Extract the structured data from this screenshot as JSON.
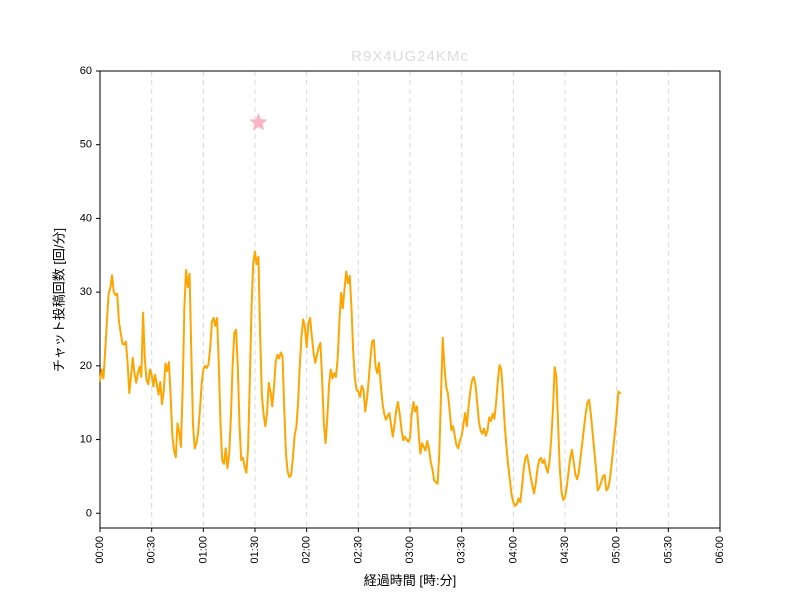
{
  "chart_data": {
    "type": "line",
    "title": "R9X4UG24KMc",
    "title_color": "#dcdcdc",
    "xlabel": "経過時間 [時:分]",
    "ylabel": "チャット投稿回数 [回/分]",
    "x_tick_labels": [
      "00:00",
      "00:30",
      "01:00",
      "01:30",
      "02:00",
      "02:30",
      "03:00",
      "03:30",
      "04:00",
      "04:30",
      "05:00",
      "05:30",
      "06:00"
    ],
    "x_tick_minutes": [
      0,
      30,
      60,
      90,
      120,
      150,
      180,
      210,
      240,
      270,
      300,
      330,
      360
    ],
    "x_total_minutes": 360,
    "y_ticks": [
      0,
      10,
      20,
      30,
      40,
      50,
      60
    ],
    "ylim": [
      -2,
      60
    ],
    "grid": "vertical-dashed",
    "grid_color": "#d8d8d8",
    "axes_box": true,
    "legend": "none",
    "series": [
      {
        "name": "チャット投稿回数",
        "color": "#FFA500",
        "x_unit": "minutes-elapsed",
        "points": [
          [
            0,
            18
          ],
          [
            1,
            19.5
          ],
          [
            2,
            18.3
          ],
          [
            3,
            22
          ],
          [
            4,
            26
          ],
          [
            5,
            29.8
          ],
          [
            6,
            30.6
          ],
          [
            7,
            32.3
          ],
          [
            8,
            30
          ],
          [
            9,
            29.6
          ],
          [
            10,
            29.8
          ],
          [
            11,
            26
          ],
          [
            12,
            24.5
          ],
          [
            13,
            23
          ],
          [
            14,
            22.9
          ],
          [
            15,
            23.3
          ],
          [
            16,
            20.5
          ],
          [
            17,
            16.3
          ],
          [
            18,
            18.5
          ],
          [
            19,
            21.1
          ],
          [
            20,
            19
          ],
          [
            21,
            17.7
          ],
          [
            22,
            19
          ],
          [
            23,
            19.9
          ],
          [
            24,
            18.5
          ],
          [
            25,
            27.2
          ],
          [
            26,
            21
          ],
          [
            27,
            18.1
          ],
          [
            28,
            17.5
          ],
          [
            29,
            19.5
          ],
          [
            30,
            18.8
          ],
          [
            31,
            17.2
          ],
          [
            32,
            18.8
          ],
          [
            33,
            17.5
          ],
          [
            34,
            16.1
          ],
          [
            35,
            17.8
          ],
          [
            36,
            14.8
          ],
          [
            37,
            16.5
          ],
          [
            38,
            20.3
          ],
          [
            39,
            19.3
          ],
          [
            40,
            20.5
          ],
          [
            41,
            16
          ],
          [
            42,
            10.5
          ],
          [
            43,
            8.5
          ],
          [
            44,
            7.6
          ],
          [
            45,
            12.2
          ],
          [
            46,
            11
          ],
          [
            47,
            9
          ],
          [
            48,
            17
          ],
          [
            49,
            28
          ],
          [
            50,
            33
          ],
          [
            51,
            30.7
          ],
          [
            52,
            32.5
          ],
          [
            53,
            22
          ],
          [
            54,
            12
          ],
          [
            55,
            8.8
          ],
          [
            56,
            9.5
          ],
          [
            57,
            11
          ],
          [
            58,
            14
          ],
          [
            59,
            17.5
          ],
          [
            60,
            19.5
          ],
          [
            61,
            20
          ],
          [
            62,
            19.7
          ],
          [
            63,
            20.2
          ],
          [
            64,
            22.5
          ],
          [
            65,
            26
          ],
          [
            66,
            26.5
          ],
          [
            67,
            25.4
          ],
          [
            68,
            26.5
          ],
          [
            69,
            20
          ],
          [
            70,
            12
          ],
          [
            71,
            7.1
          ],
          [
            72,
            6.7
          ],
          [
            73,
            8.8
          ],
          [
            74,
            6.1
          ],
          [
            75,
            8
          ],
          [
            76,
            13
          ],
          [
            77,
            20
          ],
          [
            78,
            24.5
          ],
          [
            79,
            24.9
          ],
          [
            80,
            20
          ],
          [
            81,
            12
          ],
          [
            82,
            7.2
          ],
          [
            83,
            7.5
          ],
          [
            84,
            6.3
          ],
          [
            85,
            5.5
          ],
          [
            86,
            9
          ],
          [
            87,
            18
          ],
          [
            88,
            28
          ],
          [
            89,
            34
          ],
          [
            90,
            35.5
          ],
          [
            91,
            33.8
          ],
          [
            92,
            34.8
          ],
          [
            93,
            24
          ],
          [
            94,
            16
          ],
          [
            95,
            13.4
          ],
          [
            96,
            11.8
          ],
          [
            97,
            13.6
          ],
          [
            98,
            17.7
          ],
          [
            99,
            16.5
          ],
          [
            100,
            14.5
          ],
          [
            101,
            17
          ],
          [
            102,
            20.5
          ],
          [
            103,
            21.5
          ],
          [
            104,
            21
          ],
          [
            105,
            21.8
          ],
          [
            106,
            21.3
          ],
          [
            107,
            14
          ],
          [
            108,
            8
          ],
          [
            109,
            5.6
          ],
          [
            110,
            4.9
          ],
          [
            111,
            5.2
          ],
          [
            112,
            7.5
          ],
          [
            113,
            10.5
          ],
          [
            114,
            11.7
          ],
          [
            115,
            15
          ],
          [
            116,
            20
          ],
          [
            117,
            24
          ],
          [
            118,
            26.3
          ],
          [
            119,
            25.2
          ],
          [
            120,
            22.5
          ],
          [
            121,
            25.8
          ],
          [
            122,
            26.5
          ],
          [
            123,
            24
          ],
          [
            124,
            21.8
          ],
          [
            125,
            20.4
          ],
          [
            126,
            21.5
          ],
          [
            127,
            22.5
          ],
          [
            128,
            23.1
          ],
          [
            129,
            18
          ],
          [
            130,
            12
          ],
          [
            131,
            9.5
          ],
          [
            132,
            13
          ],
          [
            133,
            17.5
          ],
          [
            134,
            19.5
          ],
          [
            135,
            18.3
          ],
          [
            136,
            19
          ],
          [
            137,
            18.5
          ],
          [
            138,
            21
          ],
          [
            139,
            26
          ],
          [
            140,
            29.9
          ],
          [
            141,
            27.8
          ],
          [
            142,
            30.5
          ],
          [
            143,
            32.8
          ],
          [
            144,
            31.2
          ],
          [
            145,
            32.2
          ],
          [
            146,
            28
          ],
          [
            147,
            22
          ],
          [
            148,
            18.3
          ],
          [
            149,
            16.7
          ],
          [
            150,
            16.5
          ],
          [
            151,
            15.8
          ],
          [
            152,
            17.3
          ],
          [
            153,
            16.8
          ],
          [
            154,
            13.8
          ],
          [
            155,
            15.5
          ],
          [
            156,
            18
          ],
          [
            157,
            21
          ],
          [
            158,
            23.3
          ],
          [
            159,
            23.5
          ],
          [
            160,
            19.9
          ],
          [
            161,
            19
          ],
          [
            162,
            20.4
          ],
          [
            163,
            17.5
          ],
          [
            164,
            15
          ],
          [
            165,
            13.5
          ],
          [
            166,
            12.7
          ],
          [
            167,
            13.2
          ],
          [
            168,
            13.6
          ],
          [
            169,
            12
          ],
          [
            170,
            10.4
          ],
          [
            171,
            12
          ],
          [
            172,
            14
          ],
          [
            173,
            15.1
          ],
          [
            174,
            13.5
          ],
          [
            175,
            11.5
          ],
          [
            176,
            9.9
          ],
          [
            177,
            10.4
          ],
          [
            178,
            10
          ],
          [
            179,
            9.7
          ],
          [
            180,
            10.2
          ],
          [
            181,
            13.5
          ],
          [
            182,
            15.1
          ],
          [
            183,
            13.8
          ],
          [
            184,
            14.5
          ],
          [
            185,
            11
          ],
          [
            186,
            8.1
          ],
          [
            187,
            9.5
          ],
          [
            188,
            9
          ],
          [
            189,
            8.5
          ],
          [
            190,
            9.8
          ],
          [
            191,
            8.8
          ],
          [
            192,
            7
          ],
          [
            193,
            6
          ],
          [
            194,
            4.5
          ],
          [
            195,
            4.2
          ],
          [
            196,
            4
          ],
          [
            197,
            8
          ],
          [
            198,
            16
          ],
          [
            199,
            23.8
          ],
          [
            200,
            20
          ],
          [
            201,
            17.1
          ],
          [
            202,
            16.3
          ],
          [
            203,
            14
          ],
          [
            204,
            11.3
          ],
          [
            205,
            11.8
          ],
          [
            206,
            10.5
          ],
          [
            207,
            9.2
          ],
          [
            208,
            8.8
          ],
          [
            209,
            9.9
          ],
          [
            210,
            10.5
          ],
          [
            211,
            12
          ],
          [
            212,
            13.6
          ],
          [
            213,
            11.8
          ],
          [
            214,
            14.5
          ],
          [
            215,
            16.5
          ],
          [
            216,
            18
          ],
          [
            217,
            18.5
          ],
          [
            218,
            17.5
          ],
          [
            219,
            15
          ],
          [
            220,
            12.5
          ],
          [
            221,
            11.2
          ],
          [
            222,
            10.8
          ],
          [
            223,
            11.5
          ],
          [
            224,
            10.5
          ],
          [
            225,
            11.2
          ],
          [
            226,
            13
          ],
          [
            227,
            12.5
          ],
          [
            228,
            13.5
          ],
          [
            229,
            12.8
          ],
          [
            230,
            15
          ],
          [
            231,
            18
          ],
          [
            232,
            20.1
          ],
          [
            233,
            19.5
          ],
          [
            234,
            16
          ],
          [
            235,
            12
          ],
          [
            236,
            9
          ],
          [
            237,
            6.5
          ],
          [
            238,
            4.5
          ],
          [
            239,
            2.5
          ],
          [
            240,
            1.5
          ],
          [
            241,
            1
          ],
          [
            242,
            1.2
          ],
          [
            243,
            2
          ],
          [
            244,
            1.5
          ],
          [
            245,
            3.5
          ],
          [
            246,
            6
          ],
          [
            247,
            7.5
          ],
          [
            248,
            7.9
          ],
          [
            249,
            6.5
          ],
          [
            250,
            5
          ],
          [
            251,
            3.8
          ],
          [
            252,
            2.7
          ],
          [
            253,
            4
          ],
          [
            254,
            6
          ],
          [
            255,
            7.2
          ],
          [
            256,
            7.5
          ],
          [
            257,
            6.8
          ],
          [
            258,
            7.3
          ],
          [
            259,
            6.2
          ],
          [
            260,
            5.5
          ],
          [
            261,
            7
          ],
          [
            262,
            10
          ],
          [
            263,
            14
          ],
          [
            264,
            19.8
          ],
          [
            265,
            18.5
          ],
          [
            266,
            12
          ],
          [
            267,
            6
          ],
          [
            268,
            2.8
          ],
          [
            269,
            1.8
          ],
          [
            270,
            2.2
          ],
          [
            271,
            3.5
          ],
          [
            272,
            5.5
          ],
          [
            273,
            7.5
          ],
          [
            274,
            8.6
          ],
          [
            275,
            7
          ],
          [
            276,
            5.3
          ],
          [
            277,
            4.6
          ],
          [
            278,
            5.5
          ],
          [
            279,
            7.5
          ],
          [
            280,
            9.5
          ],
          [
            281,
            11.5
          ],
          [
            282,
            13.5
          ],
          [
            283,
            15
          ],
          [
            284,
            15.4
          ],
          [
            285,
            13.5
          ],
          [
            286,
            11
          ],
          [
            287,
            8.5
          ],
          [
            288,
            6
          ],
          [
            289,
            3.1
          ],
          [
            290,
            3.5
          ],
          [
            291,
            4.2
          ],
          [
            292,
            5
          ],
          [
            293,
            5.2
          ],
          [
            294,
            3.1
          ],
          [
            295,
            3.4
          ],
          [
            296,
            4.5
          ],
          [
            297,
            6.5
          ],
          [
            298,
            8.8
          ],
          [
            299,
            11
          ],
          [
            300,
            13.5
          ],
          [
            301,
            16.5
          ],
          [
            302,
            16.3
          ]
        ]
      }
    ],
    "marker": {
      "type": "star",
      "color": "#f8b5c1",
      "x_minutes": 92,
      "x_label": "01:32",
      "y": 53
    }
  }
}
